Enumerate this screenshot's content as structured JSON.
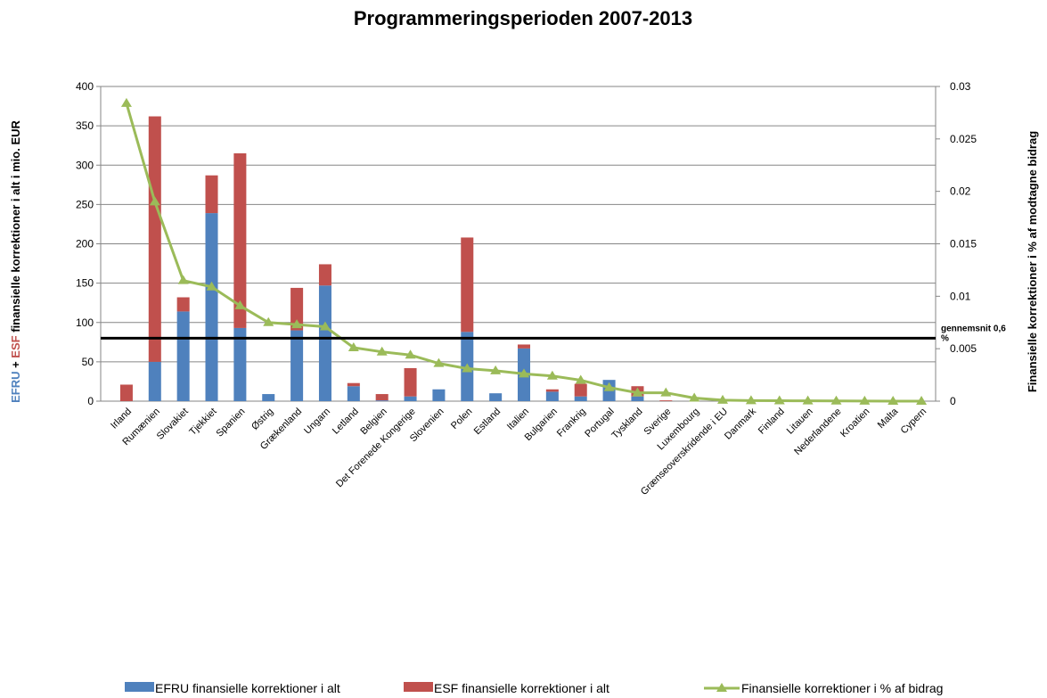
{
  "chart_data": {
    "type": "bar",
    "title": "Programmeringsperioden 2007-2013",
    "ylabel_parts": [
      "EFRU",
      "+",
      "ESF",
      "finansielle korrektioner i alt i mio. EUR"
    ],
    "ylabel_colors": [
      "#4f81bd",
      "#000000",
      "#c0504d",
      "#000000"
    ],
    "y2label": "Finansielle korrektioner i % af modtagne bidrag",
    "y2label_color": "#9bbb59",
    "categories": [
      "Irland",
      "Rumænien",
      "Slovakiet",
      "Tjekkiet",
      "Spanien",
      "Østrig",
      "Grækenland",
      "Ungarn",
      "Letland",
      "Belgien",
      "Det Forenede Kongerige",
      "Slovenien",
      "Polen",
      "Estland",
      "Italien",
      "Bulgarien",
      "Frankrig",
      "Portugal",
      "Tyskland",
      "Sverige",
      "Luxembourg",
      "Grænseoverskridende i EU",
      "Danmark",
      "Finland",
      "Litauen",
      "Nederlandene",
      "Kroatien",
      "Malta",
      "Cypern"
    ],
    "series": [
      {
        "name": "EFRU finansielle korrektioner i alt",
        "color": "#4f81bd",
        "kind": "bar",
        "stack": true,
        "values": [
          0,
          50,
          114,
          239,
          93,
          9,
          90,
          147,
          19,
          1,
          6,
          15,
          88,
          10,
          67,
          12,
          6,
          27,
          6,
          0,
          0,
          0,
          0,
          0,
          0,
          0,
          0,
          0,
          0
        ]
      },
      {
        "name": "ESF finansielle korrektioner i alt",
        "color": "#c0504d",
        "kind": "bar",
        "stack": true,
        "values": [
          21,
          312,
          18,
          48,
          222,
          0,
          54,
          27,
          4,
          8,
          36,
          0,
          120,
          0,
          5,
          3,
          16,
          0,
          13,
          1,
          0,
          0,
          0,
          0,
          0,
          0,
          0,
          0,
          0
        ]
      },
      {
        "name": "Finansielle korrektioner i % af bidrag",
        "color": "#9bbb59",
        "kind": "line",
        "axis": "y2",
        "values": [
          0.0284,
          0.019,
          0.0115,
          0.0109,
          0.0091,
          0.0075,
          0.0073,
          0.0071,
          0.0051,
          0.0047,
          0.0044,
          0.0036,
          0.0031,
          0.0029,
          0.0026,
          0.0024,
          0.002,
          0.0013,
          0.0008,
          0.0008,
          0.0003,
          0.0001,
          5e-05,
          4e-05,
          3e-05,
          2e-05,
          1e-05,
          0,
          0
        ]
      }
    ],
    "ylim": [
      0,
      400
    ],
    "yticks": [
      0,
      50,
      100,
      150,
      200,
      250,
      300,
      350,
      400
    ],
    "y2lim": [
      0,
      0.03
    ],
    "y2ticks": [
      0,
      0.005,
      0.01,
      0.015,
      0.02,
      0.025,
      0.03
    ],
    "grid": true,
    "reference_line": {
      "value": 0.006,
      "axis": "y2",
      "label": "gennemsnit 0,6 %"
    },
    "legend": "bottom"
  }
}
